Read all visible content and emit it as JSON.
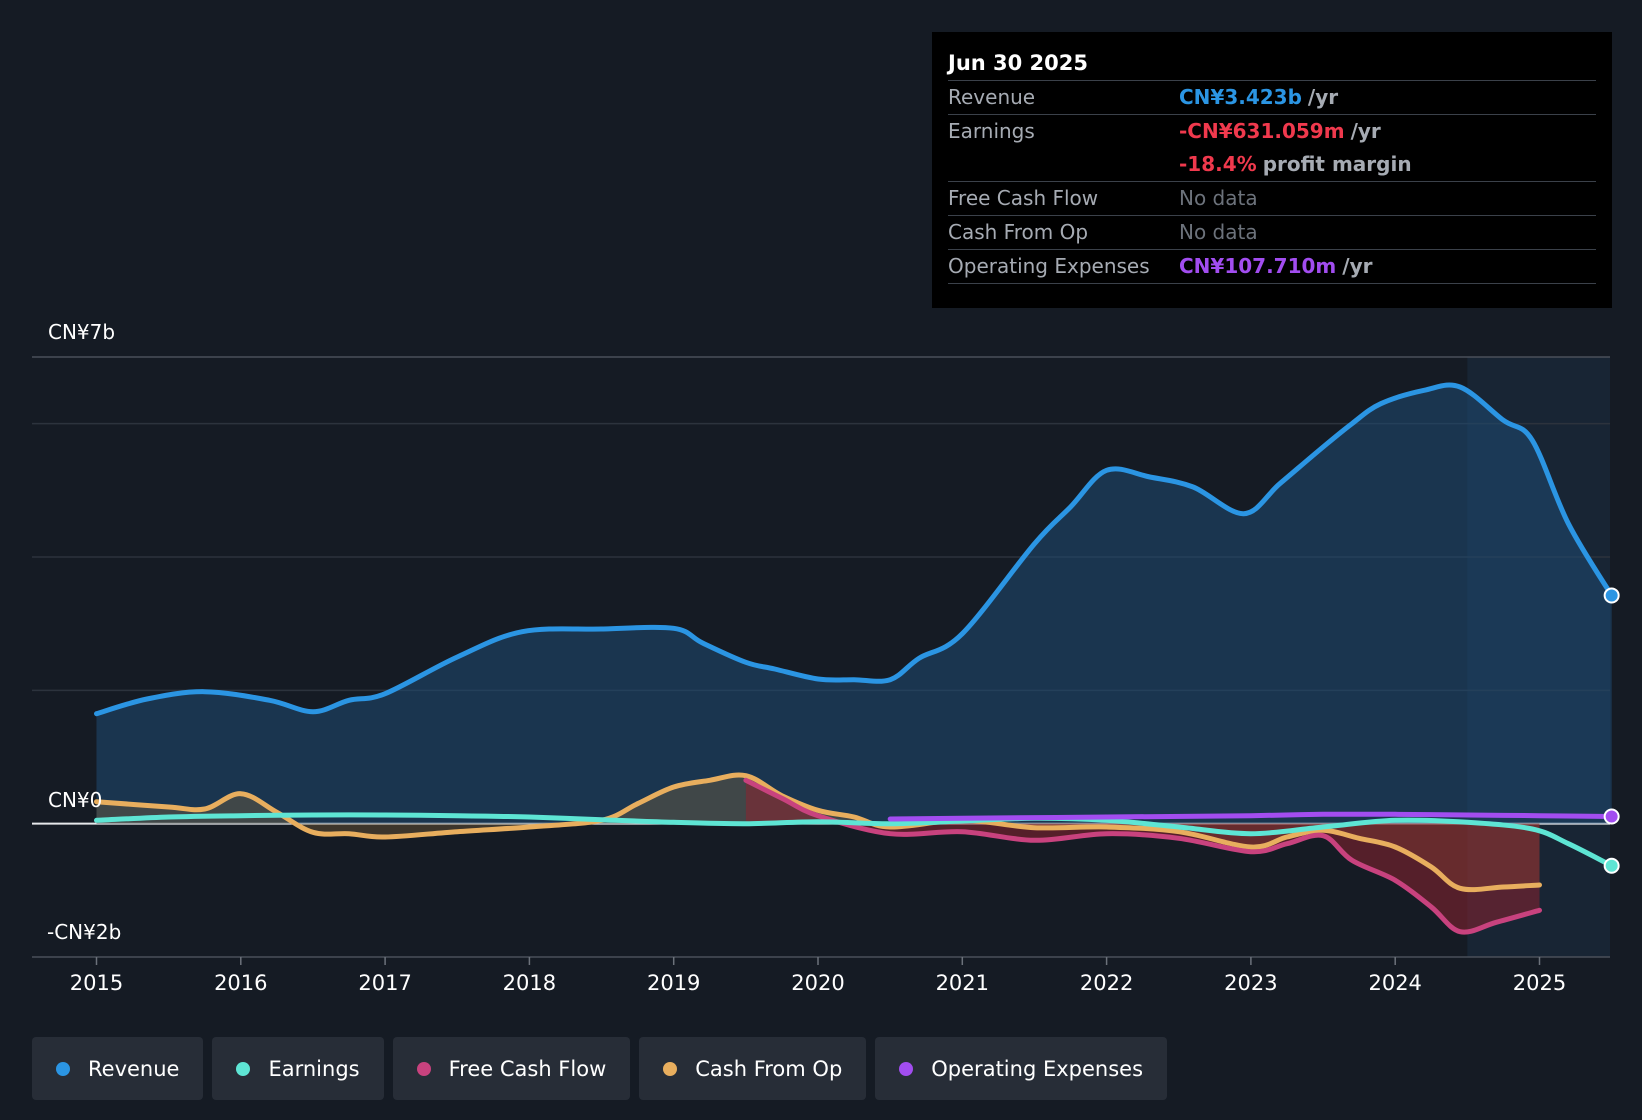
{
  "tooltip": {
    "date": "Jun 30 2025",
    "revenue_label": "Revenue",
    "revenue_value": "CN¥3.423b",
    "revenue_unit": "/yr",
    "earnings_label": "Earnings",
    "earnings_value": "-CN¥631.059m",
    "earnings_unit": "/yr",
    "margin_value": "-18.4%",
    "margin_unit": "profit margin",
    "fcf_label": "Free Cash Flow",
    "fcf_value": "No data",
    "cfo_label": "Cash From Op",
    "cfo_value": "No data",
    "opex_label": "Operating Expenses",
    "opex_value": "CN¥107.710m",
    "opex_unit": "/yr"
  },
  "colors": {
    "revenue": "#2b95e3",
    "earnings": "#5ee5d4",
    "fcf": "#c8427e",
    "cfo": "#e8ae5e",
    "opex": "#a24df0",
    "negative_text": "#f0394d",
    "background": "#151b24"
  },
  "legend": {
    "revenue": "Revenue",
    "earnings": "Earnings",
    "fcf": "Free Cash Flow",
    "cfo": "Cash From Op",
    "opex": "Operating Expenses"
  },
  "chart_data": {
    "type": "line",
    "y_top_label": "CN¥7b",
    "y_zero_label": "CN¥0",
    "y_bottom_label": "-CN¥2b",
    "ylim": [
      -2.0,
      7.0
    ],
    "xlim": [
      2014.55,
      2025.55
    ],
    "x_ticks": [
      "2015",
      "2016",
      "2017",
      "2018",
      "2019",
      "2020",
      "2021",
      "2022",
      "2023",
      "2024",
      "2025"
    ],
    "series": [
      {
        "name": "Revenue",
        "key": "revenue",
        "points": [
          [
            2015.0,
            1.65
          ],
          [
            2015.35,
            1.87
          ],
          [
            2015.75,
            1.98
          ],
          [
            2016.2,
            1.85
          ],
          [
            2016.5,
            1.68
          ],
          [
            2016.75,
            1.85
          ],
          [
            2017.0,
            1.95
          ],
          [
            2017.5,
            2.5
          ],
          [
            2017.95,
            2.88
          ],
          [
            2018.5,
            2.92
          ],
          [
            2019.0,
            2.93
          ],
          [
            2019.2,
            2.71
          ],
          [
            2019.5,
            2.42
          ],
          [
            2019.7,
            2.32
          ],
          [
            2020.0,
            2.17
          ],
          [
            2020.25,
            2.16
          ],
          [
            2020.5,
            2.16
          ],
          [
            2020.7,
            2.48
          ],
          [
            2021.0,
            2.85
          ],
          [
            2021.5,
            4.2
          ],
          [
            2021.75,
            4.75
          ],
          [
            2022.0,
            5.3
          ],
          [
            2022.3,
            5.2
          ],
          [
            2022.6,
            5.05
          ],
          [
            2022.95,
            4.65
          ],
          [
            2023.2,
            5.1
          ],
          [
            2023.5,
            5.65
          ],
          [
            2023.7,
            6.0
          ],
          [
            2023.9,
            6.3
          ],
          [
            2024.2,
            6.5
          ],
          [
            2024.45,
            6.55
          ],
          [
            2024.75,
            6.05
          ],
          [
            2024.95,
            5.75
          ],
          [
            2025.2,
            4.5
          ],
          [
            2025.5,
            3.423
          ]
        ]
      },
      {
        "name": "Earnings",
        "key": "earnings",
        "points": [
          [
            2015.0,
            0.05
          ],
          [
            2015.5,
            0.1
          ],
          [
            2016.0,
            0.12
          ],
          [
            2016.5,
            0.13
          ],
          [
            2017.0,
            0.13
          ],
          [
            2017.5,
            0.12
          ],
          [
            2018.0,
            0.1
          ],
          [
            2018.5,
            0.06
          ],
          [
            2019.0,
            0.02
          ],
          [
            2019.5,
            0.0
          ],
          [
            2020.0,
            0.03
          ],
          [
            2020.5,
            0.0
          ],
          [
            2021.0,
            0.04
          ],
          [
            2021.5,
            0.08
          ],
          [
            2022.0,
            0.05
          ],
          [
            2022.5,
            -0.05
          ],
          [
            2023.0,
            -0.15
          ],
          [
            2023.5,
            -0.05
          ],
          [
            2024.0,
            0.05
          ],
          [
            2024.5,
            0.02
          ],
          [
            2024.95,
            -0.08
          ],
          [
            2025.2,
            -0.3
          ],
          [
            2025.5,
            -0.631
          ]
        ]
      },
      {
        "name": "Free Cash Flow",
        "key": "fcf",
        "points": [
          [
            2019.5,
            0.65
          ],
          [
            2019.75,
            0.38
          ],
          [
            2020.0,
            0.12
          ],
          [
            2020.5,
            -0.15
          ],
          [
            2021.0,
            -0.12
          ],
          [
            2021.5,
            -0.25
          ],
          [
            2022.0,
            -0.15
          ],
          [
            2022.5,
            -0.22
          ],
          [
            2023.0,
            -0.42
          ],
          [
            2023.25,
            -0.3
          ],
          [
            2023.5,
            -0.18
          ],
          [
            2023.7,
            -0.55
          ],
          [
            2024.0,
            -0.85
          ],
          [
            2024.25,
            -1.25
          ],
          [
            2024.45,
            -1.62
          ],
          [
            2024.7,
            -1.48
          ],
          [
            2025.0,
            -1.3
          ]
        ]
      },
      {
        "name": "Cash From Op",
        "key": "cfo",
        "points": [
          [
            2015.0,
            0.33
          ],
          [
            2015.5,
            0.25
          ],
          [
            2015.75,
            0.22
          ],
          [
            2016.0,
            0.45
          ],
          [
            2016.25,
            0.17
          ],
          [
            2016.5,
            -0.13
          ],
          [
            2016.75,
            -0.15
          ],
          [
            2017.0,
            -0.2
          ],
          [
            2017.5,
            -0.12
          ],
          [
            2018.0,
            -0.05
          ],
          [
            2018.5,
            0.05
          ],
          [
            2018.75,
            0.3
          ],
          [
            2019.0,
            0.55
          ],
          [
            2019.25,
            0.65
          ],
          [
            2019.5,
            0.72
          ],
          [
            2019.75,
            0.42
          ],
          [
            2020.0,
            0.2
          ],
          [
            2020.25,
            0.1
          ],
          [
            2020.5,
            -0.05
          ],
          [
            2021.0,
            0.05
          ],
          [
            2021.5,
            -0.06
          ],
          [
            2022.0,
            -0.05
          ],
          [
            2022.5,
            -0.12
          ],
          [
            2023.0,
            -0.35
          ],
          [
            2023.25,
            -0.2
          ],
          [
            2023.5,
            -0.1
          ],
          [
            2023.75,
            -0.22
          ],
          [
            2024.0,
            -0.35
          ],
          [
            2024.25,
            -0.65
          ],
          [
            2024.45,
            -0.97
          ],
          [
            2024.75,
            -0.95
          ],
          [
            2025.0,
            -0.92
          ]
        ]
      },
      {
        "name": "Operating Expenses",
        "key": "opex",
        "points": [
          [
            2020.5,
            0.07
          ],
          [
            2021.0,
            0.08
          ],
          [
            2022.0,
            0.1
          ],
          [
            2023.0,
            0.12
          ],
          [
            2023.5,
            0.14
          ],
          [
            2024.0,
            0.14
          ],
          [
            2024.5,
            0.13
          ],
          [
            2025.0,
            0.12
          ],
          [
            2025.5,
            0.1077
          ]
        ]
      }
    ]
  }
}
